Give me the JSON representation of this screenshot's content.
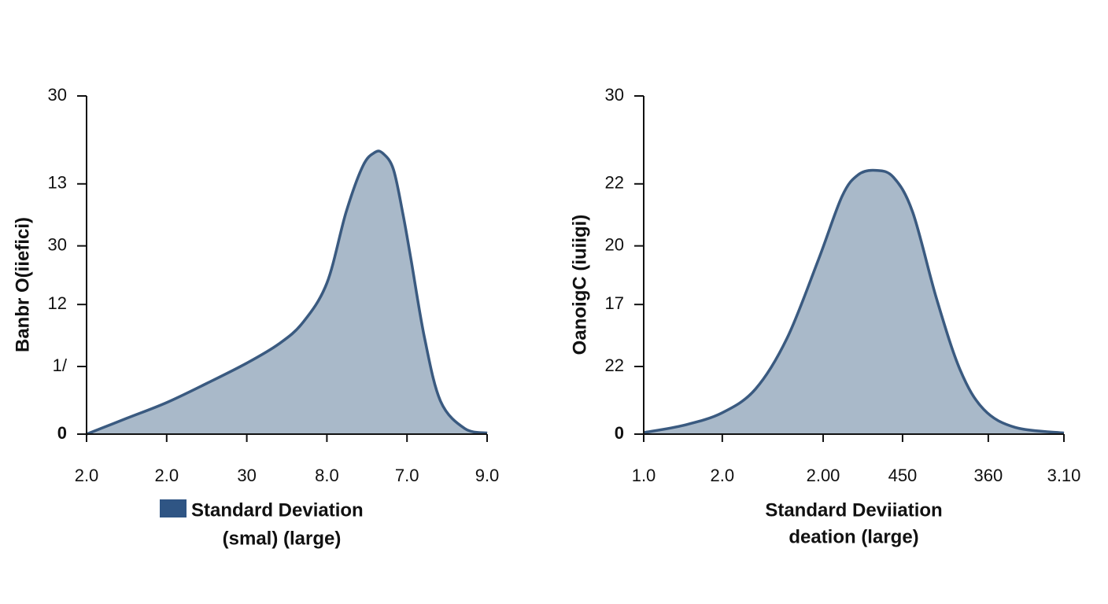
{
  "chart_data": [
    {
      "type": "area",
      "ylabel": "Banbr O(iiefici)",
      "xlabel": [
        "Standard Deviation",
        "(smal)  (large)"
      ],
      "legend": "Standard Deviation",
      "legend_color": "#2f5584",
      "color": "#3a5a80",
      "fill": "#a9b9c9",
      "x": [
        0,
        0.5,
        1,
        1.5,
        2,
        2.4,
        2.7,
        3.0,
        3.24,
        3.45,
        3.6,
        3.7,
        3.83,
        3.95,
        4.05,
        4.22,
        4.42,
        4.72,
        5
      ],
      "values": [
        0,
        1.4,
        2.8,
        4.5,
        6.3,
        8.0,
        9.9,
        13.4,
        19.7,
        23.8,
        25.0,
        24.9,
        23.5,
        19.5,
        15.5,
        8.5,
        2.9,
        0.5,
        0.1
      ],
      "xlim": [
        0,
        5
      ],
      "xticks": [
        {
          "value": 0,
          "label": "2.0"
        },
        {
          "value": 1,
          "label": "2.0"
        },
        {
          "value": 2,
          "label": "30"
        },
        {
          "value": 3,
          "label": "8.0"
        },
        {
          "value": 4,
          "label": "7.0"
        },
        {
          "value": 5,
          "label": "9.0"
        }
      ],
      "ylim": [
        0,
        30
      ],
      "yticks": [
        0,
        {
          "value": 6,
          "label": "1/"
        },
        {
          "value": 11.5,
          "label": "12"
        },
        {
          "value": 16.7,
          "label": "30"
        },
        {
          "value": 22.2,
          "label": "13"
        },
        30
      ]
    },
    {
      "type": "area",
      "ylabel": "OanoigC (iuiigi)",
      "xlabel": [
        "Standard Deviiation",
        "deation (large)"
      ],
      "color": "#3a5a80",
      "fill": "#a9b9c9",
      "x": [
        0,
        0.97,
        1.87,
        2.66,
        3.41,
        4.16,
        4.72,
        5.1,
        5.51,
        5.94,
        6.4,
        6.97,
        7.53,
        8.09,
        8.84,
        10
      ],
      "values": [
        0.14,
        0.8,
        1.9,
        4.0,
        8.5,
        15.5,
        21.1,
        23.0,
        23.4,
        22.8,
        19.7,
        12.0,
        5.7,
        2.2,
        0.6,
        0.1
      ],
      "xlim": [
        0,
        10
      ],
      "xticks": [
        {
          "value": 0,
          "label": "1.0"
        },
        {
          "value": 1.87,
          "label": "2.0"
        },
        {
          "value": 4.27,
          "label": "2.00"
        },
        {
          "value": 6.16,
          "label": "450"
        },
        {
          "value": 8.2,
          "label": "360"
        },
        {
          "value": 10,
          "label": "3.10"
        }
      ],
      "ylim": [
        0,
        30
      ],
      "yticks": [
        0,
        {
          "value": 6,
          "label": "22"
        },
        {
          "value": 11.5,
          "label": "17"
        },
        {
          "value": 16.7,
          "label": "20"
        },
        {
          "value": 22.2,
          "label": "22"
        },
        30
      ]
    }
  ]
}
